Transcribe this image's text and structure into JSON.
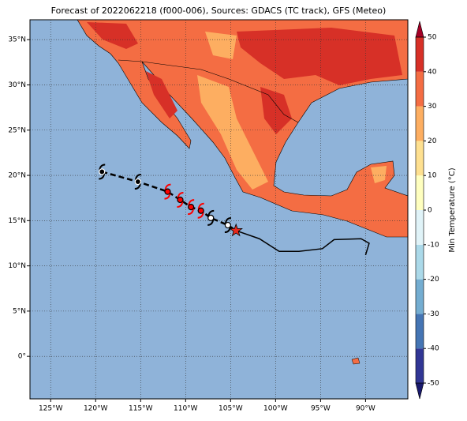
{
  "chart_data": {
    "type": "map",
    "title": "Forecast of 2022062218 (f000-006), Sources: GDACS (TC track), GFS (Meteo)",
    "xlim": [
      -127.3,
      -85.3
    ],
    "ylim": [
      -4.7,
      37.2
    ],
    "xticks": [
      {
        "value": -125,
        "label": "125°W"
      },
      {
        "value": -120,
        "label": "120°W"
      },
      {
        "value": -115,
        "label": "115°W"
      },
      {
        "value": -110,
        "label": "110°W"
      },
      {
        "value": -105,
        "label": "105°W"
      },
      {
        "value": -100,
        "label": "100°W"
      },
      {
        "value": -95,
        "label": "95°W"
      },
      {
        "value": -90,
        "label": "90°W"
      }
    ],
    "yticks": [
      {
        "value": 0,
        "label": "0°"
      },
      {
        "value": 5,
        "label": "5°N"
      },
      {
        "value": 10,
        "label": "10°N"
      },
      {
        "value": 15,
        "label": "15°N"
      },
      {
        "value": 20,
        "label": "20°N"
      },
      {
        "value": 25,
        "label": "25°N"
      },
      {
        "value": 30,
        "label": "30°N"
      },
      {
        "value": 35,
        "label": "35°N"
      }
    ],
    "grid": true,
    "colorbar": {
      "label": "Min Temperature (°C)",
      "lim": [
        -50,
        50
      ],
      "ticks": [
        -50,
        -40,
        -30,
        -20,
        -10,
        0,
        10,
        20,
        30,
        40,
        50
      ],
      "colors": [
        "#313695",
        "#4575b4",
        "#74add1",
        "#abd9e9",
        "#e0f3f8",
        "#ffffbf",
        "#fee090",
        "#fdae61",
        "#f46d43",
        "#d73027"
      ],
      "extend_low": "#1a1a6e",
      "extend_high": "#a50026"
    },
    "forecast_track": {
      "lon": [
        -119.3,
        -115.3,
        -112.0,
        -110.6,
        -109.4,
        -108.3,
        -107.2,
        -105.3
      ],
      "lat": [
        20.4,
        19.3,
        18.2,
        17.3,
        16.5,
        16.1,
        15.3,
        14.5
      ],
      "colors": [
        "#000000",
        "#000000",
        "#ff0000",
        "#ff0000",
        "#ff0000",
        "#ff0000",
        "#ffffff",
        "#ffffff"
      ]
    },
    "current_position": {
      "lon": -104.4,
      "lat": 13.9
    },
    "past_track": {
      "lon": [
        -104.4,
        -101.8,
        -99.6,
        -97.4,
        -94.8,
        -93.5,
        -90.5,
        -89.6,
        -90.0
      ],
      "lat": [
        13.9,
        13.0,
        11.6,
        11.6,
        11.9,
        12.9,
        13.0,
        12.5,
        11.2
      ]
    }
  }
}
